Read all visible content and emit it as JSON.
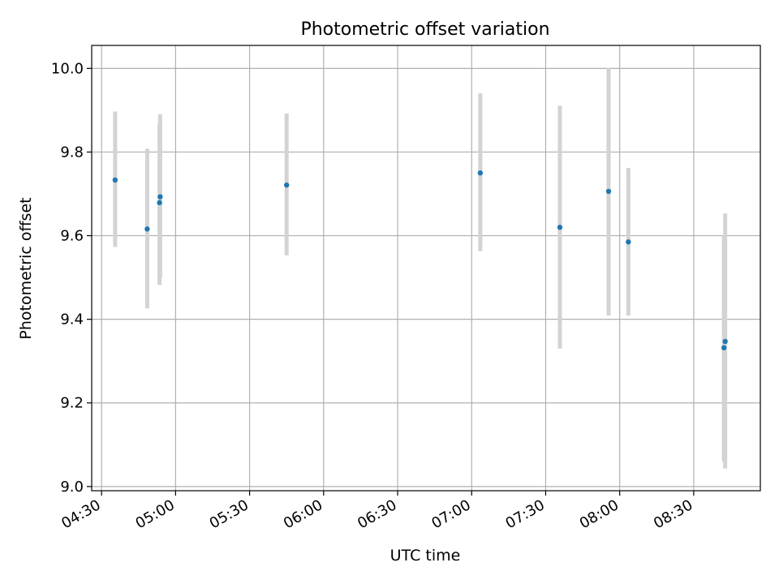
{
  "chart_data": {
    "type": "scatter",
    "title": "Photometric offset variation",
    "xlabel": "UTC time",
    "ylabel": "Photometric offset",
    "x_type": "time",
    "x_range": [
      "04:26",
      "08:57"
    ],
    "ylim": [
      8.99,
      10.055
    ],
    "x_ticks": [
      "04:30",
      "05:00",
      "05:30",
      "06:00",
      "06:30",
      "07:00",
      "07:30",
      "08:00",
      "08:30"
    ],
    "y_ticks": [
      9.0,
      9.2,
      9.4,
      9.6,
      9.8,
      10.0
    ],
    "y_tick_labels": [
      "9.0",
      "9.2",
      "9.4",
      "9.6",
      "9.8",
      "10.0"
    ],
    "grid": true,
    "point_color": "#1f77b4",
    "errorbar_color": "#d3d3d3",
    "points": [
      {
        "x": "04:35:30",
        "y": 9.733,
        "err_low": 9.573,
        "err_high": 9.897
      },
      {
        "x": "04:48:30",
        "y": 9.616,
        "err_low": 9.426,
        "err_high": 9.808
      },
      {
        "x": "04:53:30",
        "y": 9.679,
        "err_low": 9.482,
        "err_high": 9.868
      },
      {
        "x": "04:53:45",
        "y": 9.693,
        "err_low": 9.499,
        "err_high": 9.89
      },
      {
        "x": "05:45:00",
        "y": 9.721,
        "err_low": 9.553,
        "err_high": 9.892
      },
      {
        "x": "07:03:30",
        "y": 9.75,
        "err_low": 9.563,
        "err_high": 9.94
      },
      {
        "x": "07:35:45",
        "y": 9.62,
        "err_low": 9.33,
        "err_high": 9.911
      },
      {
        "x": "07:55:30",
        "y": 9.706,
        "err_low": 9.409,
        "err_high": 10.002
      },
      {
        "x": "08:03:30",
        "y": 9.585,
        "err_low": 9.409,
        "err_high": 9.762
      },
      {
        "x": "08:42:15",
        "y": 9.332,
        "err_low": 9.06,
        "err_high": 9.6
      },
      {
        "x": "08:42:45",
        "y": 9.347,
        "err_low": 9.043,
        "err_high": 9.653
      }
    ]
  }
}
